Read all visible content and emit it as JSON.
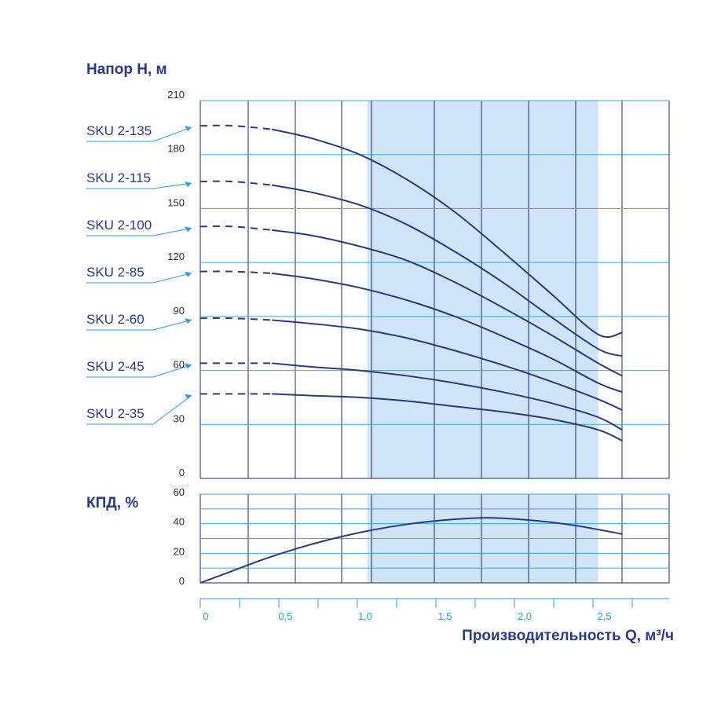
{
  "chart_data": [
    {
      "type": "line",
      "title": "Напор H, м",
      "ylim": [
        0,
        210
      ],
      "y_ticks": [
        "0",
        "30",
        "60",
        "90",
        "120",
        "150",
        "180",
        "210"
      ],
      "xlim": [
        0,
        2.9
      ],
      "highlight_range": [
        1.05,
        2.5
      ],
      "series": [
        {
          "name": "SKU 2-135",
          "x": [
            0,
            0.2,
            0.45,
            0.7,
            1.0,
            1.3,
            1.6,
            1.9,
            2.2,
            2.5,
            2.65
          ],
          "values": [
            196,
            196,
            194,
            189,
            180,
            166,
            148,
            126,
            103,
            80,
            81
          ],
          "dashed_to": 0.45
        },
        {
          "name": "SKU 2-115",
          "x": [
            0,
            0.2,
            0.45,
            0.7,
            1.0,
            1.3,
            1.6,
            1.9,
            2.2,
            2.5,
            2.65
          ],
          "values": [
            165,
            165,
            163,
            159,
            152,
            141,
            126,
            109,
            90,
            72,
            68
          ],
          "dashed_to": 0.45
        },
        {
          "name": "SKU 2-100",
          "x": [
            0,
            0.2,
            0.45,
            0.7,
            1.0,
            1.3,
            1.6,
            1.9,
            2.2,
            2.5,
            2.65
          ],
          "values": [
            140,
            140,
            138,
            135,
            129,
            121,
            109,
            95,
            80,
            64,
            57
          ],
          "dashed_to": 0.45
        },
        {
          "name": "SKU 2-85",
          "x": [
            0,
            0.2,
            0.45,
            0.7,
            1.0,
            1.3,
            1.6,
            1.9,
            2.2,
            2.5,
            2.65
          ],
          "values": [
            115,
            115,
            114,
            111,
            106,
            99,
            90,
            79,
            67,
            53,
            48
          ],
          "dashed_to": 0.45
        },
        {
          "name": "SKU 2-60",
          "x": [
            0,
            0.2,
            0.45,
            0.7,
            1.0,
            1.3,
            1.6,
            1.9,
            2.2,
            2.5,
            2.65
          ],
          "values": [
            89,
            89,
            88,
            86,
            83,
            78,
            71,
            63,
            54,
            44,
            38
          ],
          "dashed_to": 0.45
        },
        {
          "name": "SKU 2-45",
          "x": [
            0,
            0.2,
            0.45,
            0.7,
            1.0,
            1.3,
            1.6,
            1.9,
            2.2,
            2.5,
            2.65
          ],
          "values": [
            64,
            64,
            64,
            62,
            60,
            57,
            53,
            48,
            42,
            34,
            27
          ],
          "dashed_to": 0.45
        },
        {
          "name": "SKU 2-35",
          "x": [
            0,
            0.2,
            0.45,
            0.7,
            1.0,
            1.3,
            1.6,
            1.9,
            2.2,
            2.5,
            2.65
          ],
          "values": [
            47,
            47,
            47,
            46,
            45,
            43,
            40,
            37,
            33,
            27,
            21
          ],
          "dashed_to": 0.45
        }
      ]
    },
    {
      "type": "line",
      "title": "КПД, %",
      "ylim": [
        0,
        60
      ],
      "y_ticks": [
        "0",
        "20",
        "40",
        "60"
      ],
      "xlim": [
        0,
        2.9
      ],
      "highlight_range": [
        1.05,
        2.5
      ],
      "series": [
        {
          "x": [
            0,
            0.2,
            0.4,
            0.6,
            0.8,
            1.0,
            1.2,
            1.4,
            1.6,
            1.8,
            2.0,
            2.2,
            2.4,
            2.65
          ],
          "values": [
            0,
            8,
            16,
            23,
            29,
            34,
            38,
            41,
            43,
            44,
            43,
            41,
            38,
            33
          ]
        }
      ]
    }
  ],
  "x_axis": {
    "ticks": [
      "0",
      "0,5",
      "1,0",
      "1,5",
      "2,0",
      "2,5"
    ],
    "label": "Производительность Q, м³/ч"
  },
  "colors": {
    "highlight": "#cfe4f6",
    "grid_h": "#42a4db",
    "grid_v": "#1f2a5e",
    "curve": "#2b3a7a",
    "arrow": "#3a9ad9",
    "x_tick": "#3a9ad9"
  }
}
